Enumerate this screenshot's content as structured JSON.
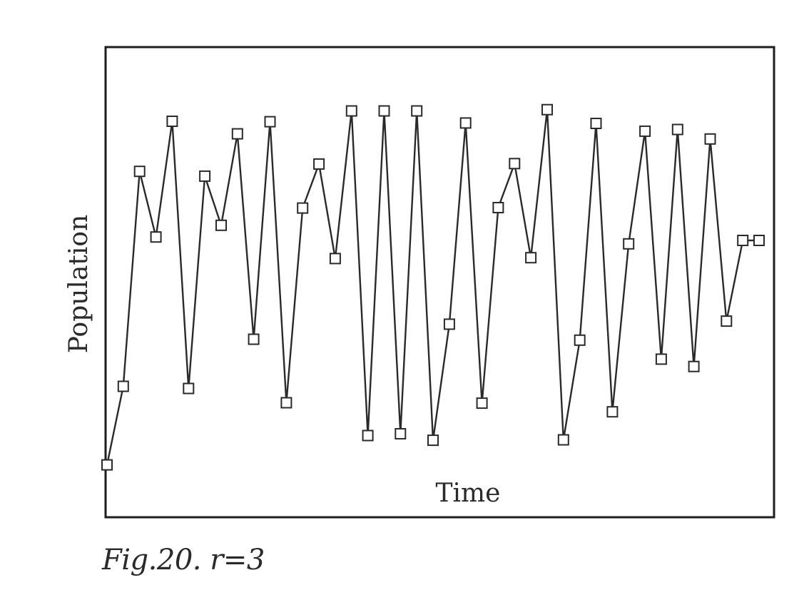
{
  "caption": "Fig.20.  r=3",
  "chart_data": {
    "type": "line",
    "xlabel": "Time",
    "ylabel": "Population",
    "marker": "square",
    "colors": {
      "line": "#2a2a2a",
      "marker_fill": "#ffffff",
      "frame": "#1e1e1e"
    },
    "ylim": [
      0,
      1
    ],
    "x": [
      0,
      1,
      2,
      3,
      4,
      5,
      6,
      7,
      8,
      9,
      10,
      11,
      12,
      13,
      14,
      15,
      16,
      17,
      18,
      19,
      20,
      21,
      22,
      23,
      24,
      25,
      26,
      27,
      28,
      29,
      30,
      31,
      32,
      33,
      34,
      35,
      36,
      37,
      38,
      39,
      40
    ],
    "values": [
      0.08,
      0.262,
      0.76,
      0.608,
      0.876,
      0.257,
      0.749,
      0.635,
      0.847,
      0.371,
      0.875,
      0.224,
      0.675,
      0.777,
      0.558,
      0.9,
      0.148,
      0.9,
      0.152,
      0.9,
      0.137,
      0.406,
      0.872,
      0.223,
      0.676,
      0.778,
      0.56,
      0.903,
      0.138,
      0.369,
      0.871,
      0.203,
      0.592,
      0.853,
      0.325,
      0.857,
      0.308,
      0.835,
      0.413,
      0.6,
      0.6
    ],
    "show_grid": false
  }
}
